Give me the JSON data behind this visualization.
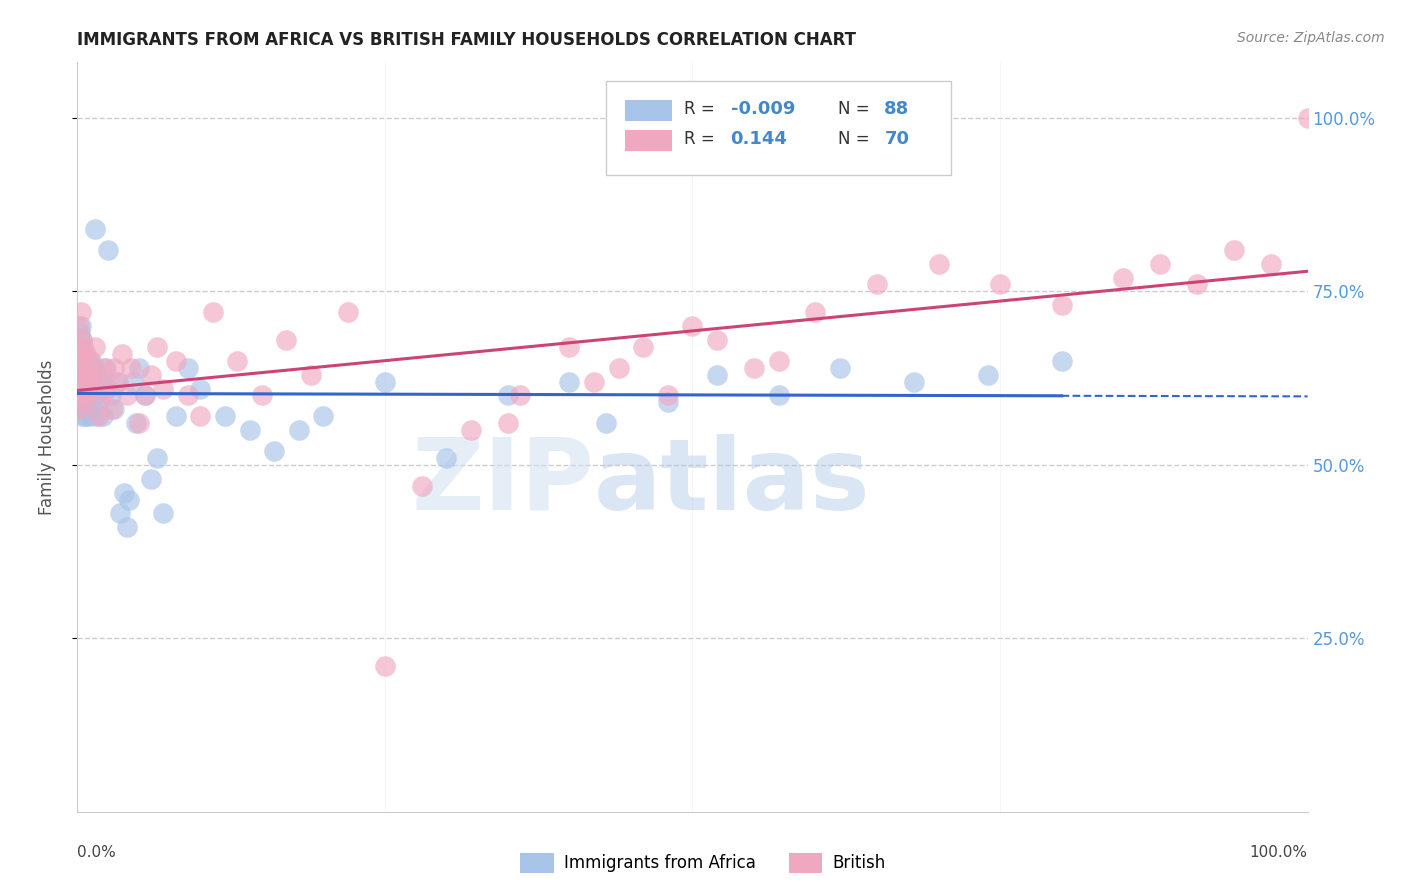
{
  "title": "IMMIGRANTS FROM AFRICA VS BRITISH FAMILY HOUSEHOLDS CORRELATION CHART",
  "source": "Source: ZipAtlas.com",
  "ylabel": "Family Households",
  "blue_R": -0.009,
  "blue_N": 88,
  "pink_R": 0.144,
  "pink_N": 70,
  "blue_color": "#a8c4e8",
  "pink_color": "#f0a8c0",
  "blue_line_color": "#3366cc",
  "pink_line_color": "#cc4477",
  "legend_blue_label": "Immigrants from Africa",
  "legend_pink_label": "British",
  "watermark_zip": "ZIP",
  "watermark_atlas": "atlas",
  "ylim_min": 0.0,
  "ylim_max": 1.08,
  "xlim_min": 0.0,
  "xlim_max": 1.0,
  "blue_scatter_x": [
    0.001,
    0.001,
    0.001,
    0.002,
    0.002,
    0.002,
    0.002,
    0.003,
    0.003,
    0.003,
    0.003,
    0.003,
    0.004,
    0.004,
    0.004,
    0.004,
    0.005,
    0.005,
    0.005,
    0.005,
    0.006,
    0.006,
    0.006,
    0.006,
    0.007,
    0.007,
    0.007,
    0.008,
    0.008,
    0.008,
    0.009,
    0.009,
    0.01,
    0.01,
    0.01,
    0.01,
    0.011,
    0.011,
    0.012,
    0.012,
    0.013,
    0.013,
    0.014,
    0.015,
    0.015,
    0.016,
    0.016,
    0.017,
    0.018,
    0.02,
    0.021,
    0.022,
    0.023,
    0.025,
    0.027,
    0.03,
    0.032,
    0.035,
    0.038,
    0.04,
    0.042,
    0.045,
    0.048,
    0.05,
    0.055,
    0.06,
    0.065,
    0.07,
    0.08,
    0.09,
    0.1,
    0.12,
    0.14,
    0.16,
    0.18,
    0.2,
    0.25,
    0.3,
    0.35,
    0.4,
    0.43,
    0.48,
    0.52,
    0.57,
    0.62,
    0.68,
    0.74,
    0.8
  ],
  "blue_scatter_y": [
    0.64,
    0.67,
    0.61,
    0.65,
    0.69,
    0.58,
    0.63,
    0.62,
    0.66,
    0.7,
    0.59,
    0.63,
    0.6,
    0.64,
    0.68,
    0.57,
    0.61,
    0.65,
    0.59,
    0.63,
    0.6,
    0.64,
    0.57,
    0.61,
    0.62,
    0.58,
    0.65,
    0.6,
    0.63,
    0.57,
    0.61,
    0.64,
    0.62,
    0.58,
    0.65,
    0.6,
    0.63,
    0.57,
    0.61,
    0.64,
    0.58,
    0.62,
    0.84,
    0.6,
    0.64,
    0.57,
    0.61,
    0.62,
    0.59,
    0.62,
    0.57,
    0.61,
    0.64,
    0.81,
    0.6,
    0.58,
    0.62,
    0.43,
    0.46,
    0.41,
    0.45,
    0.62,
    0.56,
    0.64,
    0.6,
    0.48,
    0.51,
    0.43,
    0.57,
    0.64,
    0.61,
    0.57,
    0.55,
    0.52,
    0.55,
    0.57,
    0.62,
    0.51,
    0.6,
    0.62,
    0.56,
    0.59,
    0.63,
    0.6,
    0.64,
    0.62,
    0.63,
    0.65
  ],
  "pink_scatter_x": [
    0.001,
    0.001,
    0.002,
    0.002,
    0.003,
    0.003,
    0.004,
    0.004,
    0.005,
    0.005,
    0.006,
    0.006,
    0.007,
    0.007,
    0.008,
    0.009,
    0.01,
    0.011,
    0.012,
    0.014,
    0.016,
    0.018,
    0.02,
    0.022,
    0.025,
    0.028,
    0.03,
    0.033,
    0.036,
    0.04,
    0.044,
    0.05,
    0.055,
    0.06,
    0.065,
    0.07,
    0.08,
    0.09,
    0.1,
    0.11,
    0.13,
    0.15,
    0.17,
    0.19,
    0.22,
    0.25,
    0.28,
    0.32,
    0.36,
    0.4,
    0.44,
    0.48,
    0.52,
    0.55,
    0.6,
    0.65,
    0.7,
    0.75,
    0.8,
    0.85,
    0.88,
    0.91,
    0.94,
    0.97,
    1.0,
    0.35,
    0.42,
    0.46,
    0.5,
    0.57
  ],
  "pink_scatter_y": [
    0.63,
    0.7,
    0.58,
    0.66,
    0.72,
    0.6,
    0.65,
    0.68,
    0.62,
    0.67,
    0.59,
    0.64,
    0.61,
    0.66,
    0.6,
    0.63,
    0.61,
    0.65,
    0.62,
    0.67,
    0.63,
    0.57,
    0.6,
    0.64,
    0.61,
    0.58,
    0.64,
    0.62,
    0.66,
    0.6,
    0.64,
    0.56,
    0.6,
    0.63,
    0.67,
    0.61,
    0.65,
    0.6,
    0.57,
    0.72,
    0.65,
    0.6,
    0.68,
    0.63,
    0.72,
    0.21,
    0.47,
    0.55,
    0.6,
    0.67,
    0.64,
    0.6,
    0.68,
    0.64,
    0.72,
    0.76,
    0.79,
    0.76,
    0.73,
    0.77,
    0.79,
    0.76,
    0.81,
    0.79,
    1.0,
    0.56,
    0.62,
    0.67,
    0.7,
    0.65
  ]
}
